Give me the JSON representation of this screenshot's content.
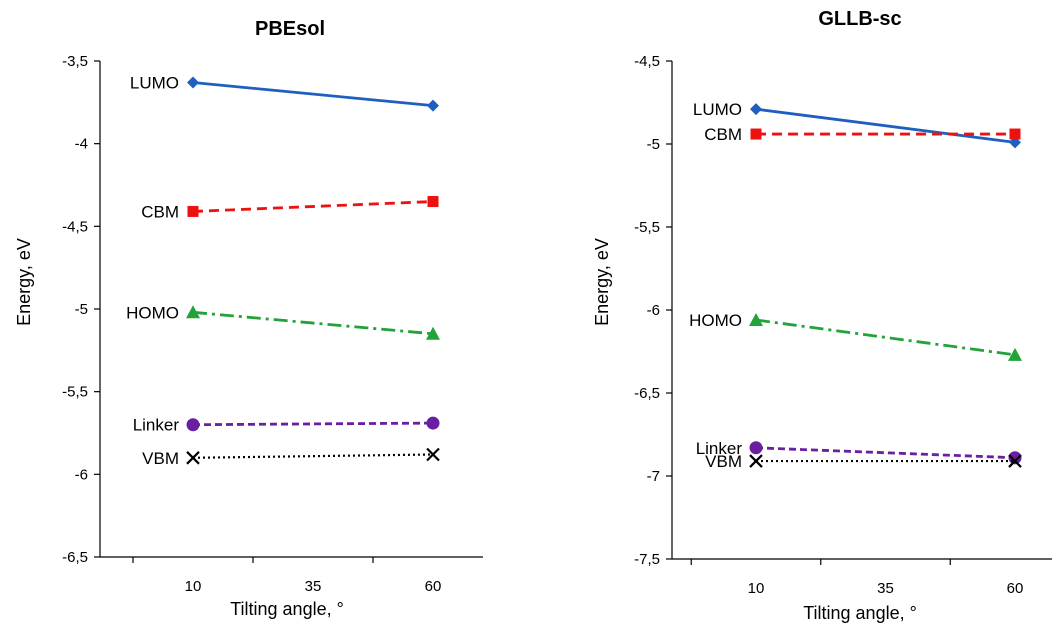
{
  "chart_data": [
    {
      "type": "line",
      "title": "PBEsol",
      "xlabel": "Tilting angle, °",
      "ylabel": "Energy, eV",
      "x": [
        10,
        60
      ],
      "x_ticks": [
        "10",
        "35",
        "60"
      ],
      "ylim": [
        -6.5,
        -3.5
      ],
      "y_ticks": [
        "-3,5",
        "-4",
        "-4,5",
        "-5",
        "-5,5",
        "-6",
        "-6,5"
      ],
      "grid": false,
      "series": [
        {
          "name": "LUMO",
          "values": [
            -3.63,
            -3.77
          ],
          "color": "#1f5fbf",
          "dash": "solid",
          "marker": "diamond"
        },
        {
          "name": "CBM",
          "values": [
            -4.41,
            -4.35
          ],
          "color": "#ee1111",
          "dash": "dashed",
          "marker": "square"
        },
        {
          "name": "HOMO",
          "values": [
            -5.02,
            -5.15
          ],
          "color": "#22a33a",
          "dash": "dashdot",
          "marker": "triangle"
        },
        {
          "name": "Linker",
          "values": [
            -5.7,
            -5.69
          ],
          "color": "#6a1fa0",
          "dash": "shortdash",
          "marker": "circle"
        },
        {
          "name": "VBM",
          "values": [
            -5.9,
            -5.88
          ],
          "color": "#000000",
          "dash": "dotted",
          "marker": "x"
        }
      ]
    },
    {
      "type": "line",
      "title": "GLLB-sc",
      "xlabel": "Tilting angle, °",
      "ylabel": "Energy, eV",
      "x": [
        10,
        60
      ],
      "x_ticks": [
        "10",
        "35",
        "60"
      ],
      "ylim": [
        -7.5,
        -4.5
      ],
      "y_ticks": [
        "-4,5",
        "-5",
        "-5,5",
        "-6",
        "-6,5",
        "-7",
        "-7,5"
      ],
      "grid": false,
      "series": [
        {
          "name": "LUMO",
          "values": [
            -4.79,
            -4.99
          ],
          "color": "#1f5fbf",
          "dash": "solid",
          "marker": "diamond"
        },
        {
          "name": "CBM",
          "values": [
            -4.94,
            -4.94
          ],
          "color": "#ee1111",
          "dash": "dashed",
          "marker": "square"
        },
        {
          "name": "HOMO",
          "values": [
            -6.06,
            -6.27
          ],
          "color": "#22a33a",
          "dash": "dashdot",
          "marker": "triangle"
        },
        {
          "name": "Linker",
          "values": [
            -6.83,
            -6.89
          ],
          "color": "#6a1fa0",
          "dash": "shortdash",
          "marker": "circle"
        },
        {
          "name": "VBM",
          "values": [
            -6.91,
            -6.91
          ],
          "color": "#000000",
          "dash": "dotted",
          "marker": "x"
        }
      ]
    }
  ]
}
